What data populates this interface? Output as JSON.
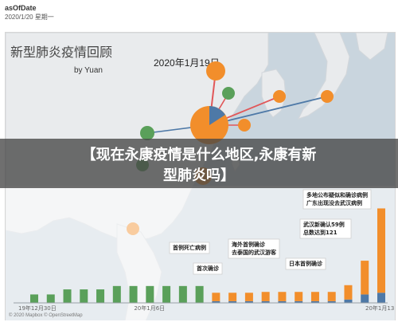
{
  "source": {
    "name": "asOfDate",
    "date": "2020/1/20 星期一"
  },
  "map": {
    "title": "新型肺炎疫情回顾",
    "byline": "by Yuan",
    "date_label": "2020年1月19日"
  },
  "overlay": {
    "line1": "【现在永康疫情是什么地区,永康有新",
    "line2": "型肺炎吗】"
  },
  "credits": "© 2020 Mapbox © OpenStreetMap",
  "chart_data": {
    "type": "bar",
    "x_tick_labels": [
      "19年12月30日",
      "20年1月6日",
      "20年1月13日"
    ],
    "series": [
      {
        "color": "#5aa05a",
        "values": [
          10,
          10,
          16,
          16,
          16,
          20,
          20,
          20,
          20,
          20,
          20,
          0,
          0,
          0,
          0,
          0,
          0,
          0,
          0,
          0,
          0,
          0
        ]
      },
      {
        "color": "#f28e2b",
        "values": [
          0,
          0,
          0,
          0,
          0,
          0,
          0,
          0,
          0,
          0,
          0,
          10,
          10,
          10,
          11,
          11,
          11,
          11,
          11,
          17,
          40,
          100
        ]
      },
      {
        "color": "#4e79a7",
        "values": [
          0,
          0,
          0,
          0,
          0,
          0,
          0,
          0,
          0,
          0,
          0,
          2,
          2,
          2,
          2,
          2,
          2,
          2,
          2,
          4,
          10,
          12
        ]
      }
    ],
    "ylim": [
      0,
      120
    ],
    "annotations": [
      {
        "text": "首例死亡病例"
      },
      {
        "text": "首次确诊"
      },
      {
        "text": "海外首例确诊\n去泰国的武汉游客"
      },
      {
        "text": "日本首例确诊"
      },
      {
        "text": "武汉新确认59例\n总数达到121"
      },
      {
        "text": "多地公布疑似和确诊病例\n广东出现没去武汉病例"
      }
    ]
  },
  "colors": {
    "land": "#eaecee",
    "water": "#c5d2dc",
    "orange": "#f28e2b",
    "green": "#5aa05a",
    "blue": "#4e79a7",
    "line_red": "#e15759",
    "line_blue": "#4e79a7"
  }
}
